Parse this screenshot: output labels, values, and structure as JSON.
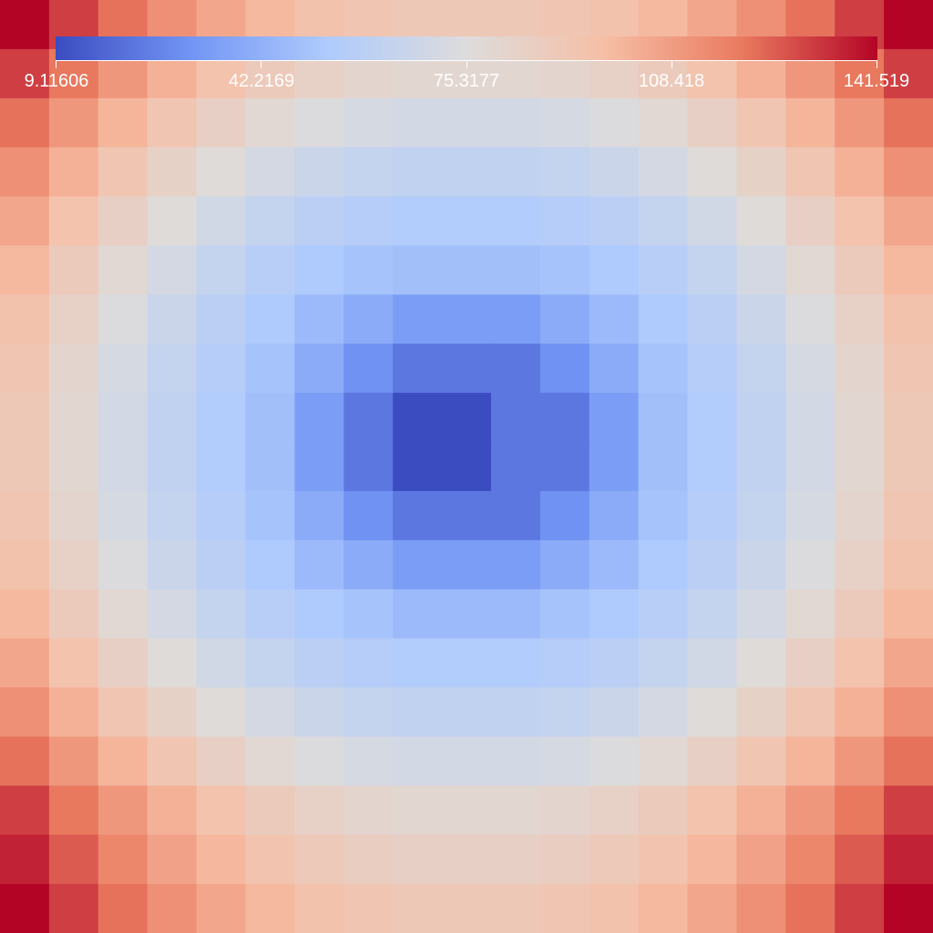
{
  "chart_data": {
    "type": "heatmap",
    "title": "",
    "xlabel": "",
    "ylabel": "",
    "grid": false,
    "rows": 19,
    "cols": 19,
    "colormap": "coolwarm",
    "colormap_stops": [
      "#3b4cc0",
      "#7396f5",
      "#b0cbfc",
      "#dddcdc",
      "#f6bfa6",
      "#ea7b60",
      "#b40426"
    ],
    "colorbar": {
      "placement": "top",
      "orientation": "horizontal",
      "min": 9.11606,
      "max": 141.519,
      "tick_labels": [
        "9.11606",
        "42.2169",
        "75.3177",
        "108.418",
        "141.519"
      ],
      "tick_values": [
        9.11606,
        42.2169,
        75.3177,
        108.418,
        141.519
      ]
    },
    "values_description_note": "",
    "values": [
      [
        141.5,
        130.8,
        121.1,
        112.6,
        105.3,
        99.4,
        94.9,
        91.9,
        90.4,
        90.4,
        90.4,
        91.9,
        94.9,
        99.4,
        105.3,
        112.6,
        121.1,
        130.8,
        141.5
      ],
      [
        130.8,
        120.1,
        110.4,
        101.9,
        94.6,
        88.7,
        84.2,
        81.2,
        79.7,
        79.7,
        79.7,
        81.2,
        84.2,
        88.7,
        94.6,
        101.9,
        110.4,
        120.1,
        130.8
      ],
      [
        121.1,
        110.4,
        100.7,
        92.2,
        84.9,
        79.0,
        74.5,
        71.5,
        70.0,
        70.0,
        70.0,
        71.5,
        74.5,
        79.0,
        84.9,
        92.2,
        100.7,
        110.4,
        121.1
      ],
      [
        112.6,
        101.9,
        92.2,
        83.7,
        76.4,
        70.5,
        66.0,
        63.0,
        61.5,
        61.5,
        61.5,
        63.0,
        66.0,
        70.5,
        76.4,
        83.7,
        92.2,
        101.9,
        112.6
      ],
      [
        105.3,
        94.6,
        84.9,
        76.4,
        69.1,
        63.2,
        58.7,
        55.7,
        54.2,
        54.2,
        54.2,
        55.7,
        58.7,
        63.2,
        69.1,
        76.4,
        84.9,
        94.6,
        105.3
      ],
      [
        99.4,
        88.7,
        79.0,
        70.5,
        63.2,
        57.3,
        52.8,
        49.8,
        48.3,
        48.3,
        48.3,
        49.8,
        52.8,
        57.3,
        63.2,
        70.5,
        79.0,
        88.7,
        99.4
      ],
      [
        94.9,
        84.2,
        74.5,
        66.0,
        58.7,
        52.8,
        46.0,
        40.0,
        34.0,
        34.0,
        34.0,
        40.0,
        46.0,
        52.8,
        58.7,
        66.0,
        74.5,
        84.2,
        94.9
      ],
      [
        91.9,
        81.2,
        71.5,
        63.0,
        55.7,
        49.8,
        40.0,
        30.0,
        22.0,
        22.0,
        22.0,
        30.0,
        40.0,
        49.8,
        55.7,
        63.0,
        71.5,
        81.2,
        91.9
      ],
      [
        90.4,
        79.7,
        70.0,
        61.5,
        54.2,
        48.3,
        34.0,
        22.0,
        9.1,
        9.1,
        22.0,
        22.0,
        34.0,
        48.3,
        54.2,
        61.5,
        70.0,
        79.7,
        90.4
      ],
      [
        90.4,
        79.7,
        70.0,
        61.5,
        54.2,
        48.3,
        34.0,
        22.0,
        9.1,
        9.1,
        22.0,
        22.0,
        34.0,
        48.3,
        54.2,
        61.5,
        70.0,
        79.7,
        90.4
      ],
      [
        91.9,
        81.2,
        71.5,
        63.0,
        55.7,
        49.8,
        40.0,
        30.0,
        22.0,
        22.0,
        22.0,
        30.0,
        40.0,
        49.8,
        55.7,
        63.0,
        71.5,
        81.2,
        91.9
      ],
      [
        94.9,
        84.2,
        74.5,
        66.0,
        58.7,
        52.8,
        46.0,
        40.0,
        34.0,
        34.0,
        34.0,
        40.0,
        46.0,
        52.8,
        58.7,
        66.0,
        74.5,
        84.2,
        94.9
      ],
      [
        99.4,
        88.7,
        79.0,
        70.5,
        63.2,
        57.3,
        52.8,
        49.8,
        46.0,
        46.0,
        46.0,
        49.8,
        52.8,
        57.3,
        63.2,
        70.5,
        79.0,
        88.7,
        99.4
      ],
      [
        105.3,
        94.6,
        84.9,
        76.4,
        69.1,
        63.2,
        58.7,
        55.7,
        54.2,
        54.2,
        54.2,
        55.7,
        58.7,
        63.2,
        69.1,
        76.4,
        84.9,
        94.6,
        105.3
      ],
      [
        112.6,
        101.9,
        92.2,
        83.7,
        76.4,
        70.5,
        66.0,
        63.0,
        61.5,
        61.5,
        61.5,
        63.0,
        66.0,
        70.5,
        76.4,
        83.7,
        92.2,
        101.9,
        112.6
      ],
      [
        121.1,
        110.4,
        100.7,
        92.2,
        84.9,
        79.0,
        74.5,
        71.5,
        70.0,
        70.0,
        70.0,
        71.5,
        74.5,
        79.0,
        84.9,
        92.2,
        100.7,
        110.4,
        121.1
      ],
      [
        130.8,
        120.1,
        110.4,
        101.9,
        94.6,
        88.7,
        84.2,
        81.2,
        79.7,
        79.7,
        79.7,
        81.2,
        84.2,
        88.7,
        94.6,
        101.9,
        110.4,
        120.1,
        130.8
      ],
      [
        136.0,
        125.3,
        115.6,
        107.1,
        99.8,
        93.9,
        89.4,
        86.4,
        84.9,
        84.9,
        84.9,
        86.4,
        89.4,
        93.9,
        99.8,
        107.1,
        115.6,
        125.3,
        136.0
      ],
      [
        141.5,
        130.8,
        121.1,
        112.6,
        105.3,
        99.4,
        94.9,
        91.9,
        90.4,
        90.4,
        90.4,
        91.9,
        94.9,
        99.4,
        105.3,
        112.6,
        121.1,
        130.8,
        141.5
      ]
    ]
  }
}
